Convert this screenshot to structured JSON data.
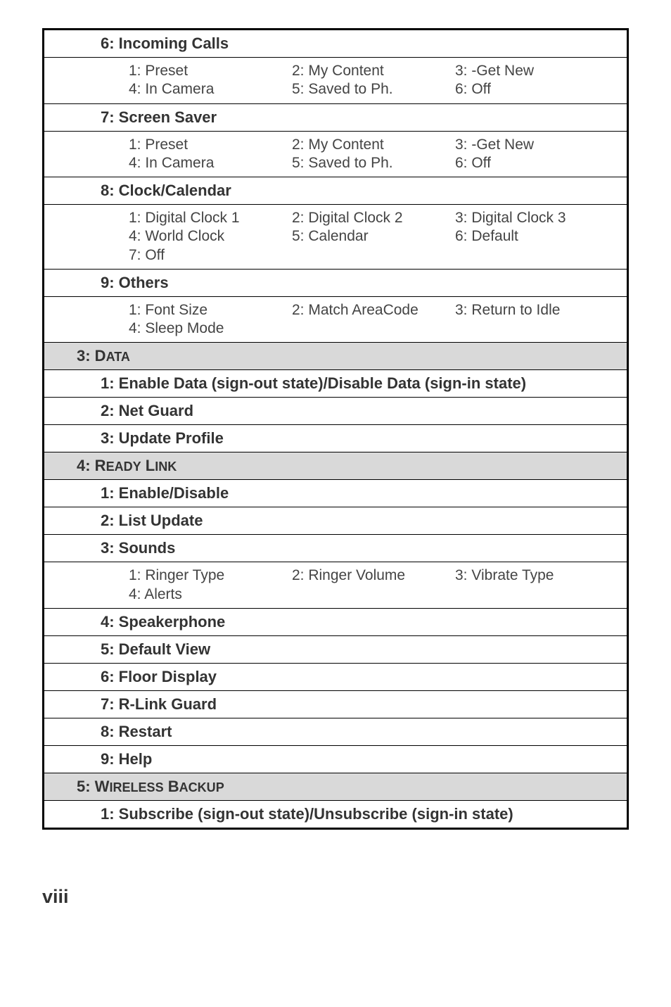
{
  "page_number": "viii",
  "sections": [
    {
      "type": "sub",
      "key": "incoming_calls",
      "label": "6: Incoming Calls",
      "rows": [
        [
          [
            "1: Preset",
            "4: In Camera"
          ],
          [
            "2: My Content",
            "5: Saved to Ph."
          ],
          [
            "3: -Get New",
            "6: Off"
          ]
        ]
      ]
    },
    {
      "type": "sub",
      "key": "screen_saver",
      "label": "7: Screen Saver",
      "rows": [
        [
          [
            "1: Preset",
            "4: In Camera"
          ],
          [
            "2: My Content",
            "5: Saved to Ph."
          ],
          [
            "3: -Get New",
            "6: Off"
          ]
        ]
      ]
    },
    {
      "type": "sub",
      "key": "clock_calendar",
      "label": "8: Clock/Calendar",
      "rows": [
        [
          [
            "1: Digital Clock 1",
            "4: World Clock",
            "7: Off"
          ],
          [
            "2: Digital Clock 2",
            "5: Calendar"
          ],
          [
            "3: Digital Clock 3",
            "6: Default"
          ]
        ]
      ]
    },
    {
      "type": "sub",
      "key": "others",
      "label": "9: Others",
      "rows": [
        [
          [
            "1: Font Size",
            "4: Sleep Mode"
          ],
          [
            "2: Match AreaCode"
          ],
          [
            "3: Return to Idle"
          ]
        ]
      ]
    },
    {
      "type": "section-sc",
      "key": "data",
      "prefix": "3: D",
      "rest": "ata"
    },
    {
      "type": "sub",
      "key": "enable_data",
      "label": "1: Enable Data (sign-out state)/Disable Data (sign-in state)"
    },
    {
      "type": "sub",
      "key": "net_guard",
      "label": "2: Net Guard"
    },
    {
      "type": "sub",
      "key": "update_profile",
      "label": "3: Update Profile"
    },
    {
      "type": "section-sc",
      "key": "ready_link",
      "prefix": "4: R",
      "rest": "eady",
      "prefix2": " L",
      "rest2": "ink"
    },
    {
      "type": "sub",
      "key": "enable_disable",
      "label": "1: Enable/Disable"
    },
    {
      "type": "sub",
      "key": "list_update",
      "label": "2: List Update"
    },
    {
      "type": "sub",
      "key": "sounds",
      "label": "3: Sounds",
      "rows": [
        [
          [
            "1: Ringer Type",
            "4: Alerts"
          ],
          [
            "2: Ringer Volume"
          ],
          [
            "3: Vibrate Type"
          ]
        ]
      ]
    },
    {
      "type": "sub",
      "key": "speakerphone",
      "label": "4: Speakerphone"
    },
    {
      "type": "sub",
      "key": "default_view",
      "label": "5: Default View"
    },
    {
      "type": "sub",
      "key": "floor_display",
      "label": "6: Floor Display"
    },
    {
      "type": "sub",
      "key": "rlink_guard",
      "label": "7: R-Link Guard"
    },
    {
      "type": "sub",
      "key": "restart",
      "label": "8: Restart"
    },
    {
      "type": "sub",
      "key": "help",
      "label": "9: Help"
    },
    {
      "type": "section-sc",
      "key": "wireless_backup",
      "prefix": "5: W",
      "rest": "ireless",
      "prefix2": " B",
      "rest2": "ackup"
    },
    {
      "type": "sub",
      "key": "subscribe",
      "label": "1: Subscribe (sign-out state)/Unsubscribe (sign-in state)"
    }
  ]
}
